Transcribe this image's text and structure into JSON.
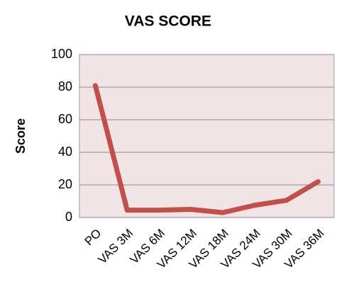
{
  "chart_data": {
    "type": "line",
    "title": "VAS SCORE",
    "y_label": "Score",
    "categories": [
      "PO",
      "VAS 3M",
      "VAS 6M",
      "VAS 12M",
      "VAS 18M",
      "VAS 24M",
      "VAS 30M",
      "VAS 36M"
    ],
    "series": [
      {
        "name": "VAS",
        "color": "#c0504d",
        "values": [
          81,
          4.5,
          4.5,
          5,
          3,
          7.5,
          10.5,
          22
        ]
      }
    ],
    "ylim": [
      0,
      100
    ],
    "yticks": [
      0,
      20,
      40,
      60,
      80,
      100
    ],
    "grid": true,
    "plot_background": "#f2e4e4"
  }
}
